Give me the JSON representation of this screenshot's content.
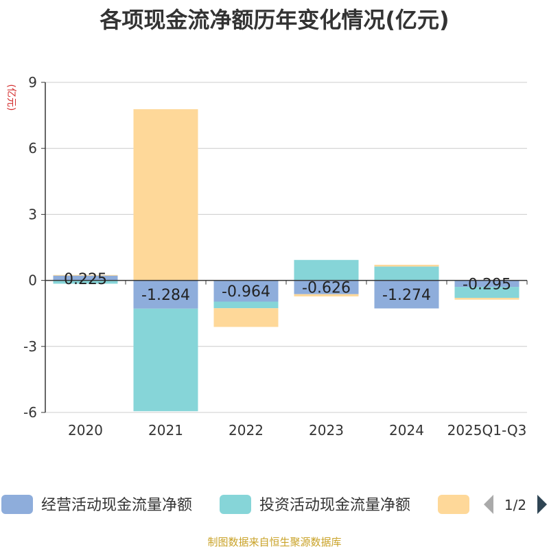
{
  "chart_data": {
    "type": "bar",
    "stacked": true,
    "title": "各项现金流净额历年变化情况(亿元)",
    "ylabel": "(亿元)",
    "ylim": [
      -6,
      9
    ],
    "yticks": [
      9,
      6,
      3,
      0,
      -3,
      -6
    ],
    "grid": true,
    "categories": [
      "2020",
      "2021",
      "2022",
      "2023",
      "2024",
      "2025Q1-Q3"
    ],
    "series": [
      {
        "name": "经营活动现金流量净额",
        "color": "#8eaddb",
        "values": [
          0.225,
          -1.284,
          -0.964,
          -0.626,
          -1.274,
          -0.295
        ],
        "show_labels": true
      },
      {
        "name": "投资活动现金流量净额",
        "color": "#86d5d8",
        "values": [
          -0.15,
          -4.66,
          -0.3,
          0.93,
          0.63,
          -0.5
        ],
        "show_labels": false
      },
      {
        "name": "",
        "color": "#fed899",
        "values": [
          0.02,
          7.78,
          -0.85,
          -0.1,
          0.08,
          -0.08
        ],
        "show_labels": false
      }
    ],
    "legend": {
      "placement": "bottom",
      "page": "1/2"
    }
  },
  "footer": {
    "source": "制图数据来自恒生聚源数据库"
  }
}
